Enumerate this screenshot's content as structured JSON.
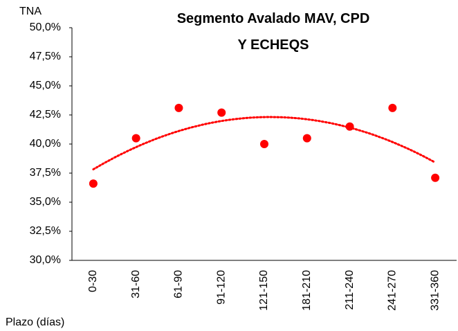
{
  "chart_data": {
    "type": "scatter",
    "title": "Segmento Avalado MAV, CPD Y ECHEQS",
    "y_label": "TNA",
    "x_label": "Plazo (días)",
    "categories": [
      "0-30",
      "31-60",
      "61-90",
      "91-120",
      "121-150",
      "181-210",
      "211-240",
      "241-270",
      "331-360"
    ],
    "values": [
      36.6,
      40.5,
      43.1,
      42.7,
      40.0,
      40.5,
      41.5,
      43.1,
      37.1
    ],
    "color": "#ff0000",
    "trendline": "polynomial",
    "ylim": [
      30,
      50
    ],
    "yticks": [
      {
        "value": 30,
        "label": "30,0%"
      },
      {
        "value": 32.5,
        "label": "32,5%"
      },
      {
        "value": 35,
        "label": "35,0%"
      },
      {
        "value": 37.5,
        "label": "37,5%"
      },
      {
        "value": 40,
        "label": "40,0%"
      },
      {
        "value": 42.5,
        "label": "42,5%"
      },
      {
        "value": 45,
        "label": "45,0%"
      },
      {
        "value": 47.5,
        "label": "47,5%"
      },
      {
        "value": 50,
        "label": "50,0%"
      }
    ],
    "grid": false
  }
}
